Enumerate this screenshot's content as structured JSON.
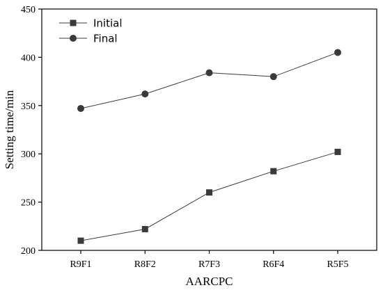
{
  "chart_data": {
    "type": "line",
    "categories": [
      "R9F1",
      "R8F2",
      "R7F3",
      "R6F4",
      "R5F5"
    ],
    "series": [
      {
        "name": "Initial",
        "marker": "square",
        "values": [
          210,
          222,
          260,
          282,
          302
        ]
      },
      {
        "name": "Final",
        "marker": "circle",
        "values": [
          347,
          362,
          384,
          380,
          405
        ]
      }
    ],
    "xlabel": "AARCPC",
    "ylabel": "Setting time/min",
    "ylim": [
      200,
      450
    ],
    "yticks": [
      200,
      250,
      300,
      350,
      400,
      450
    ],
    "grid": false,
    "legend_position": "top-left",
    "colors": {
      "line": "#3a3a3a",
      "marker": "#3a3a3a",
      "axis": "#000000"
    }
  }
}
